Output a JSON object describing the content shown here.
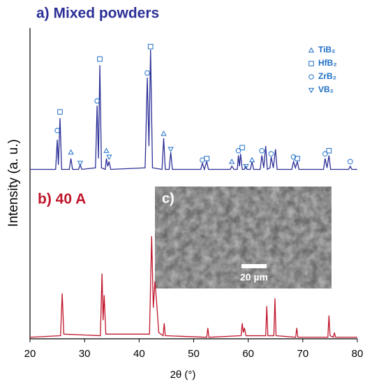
{
  "chart_data": {
    "type": "line",
    "x_label": "2θ (°)",
    "y_label": "Intensity (a. u.)",
    "annotations": [
      "a) Mixed powders",
      "b) 40 A",
      "c)",
      "20 µm"
    ],
    "xlim": [
      20,
      80
    ],
    "xticks": [
      20,
      30,
      40,
      50,
      60,
      70,
      80
    ],
    "ylim": [
      0,
      100
    ],
    "series": [
      {
        "color": "#2b2f96",
        "x": [
          20,
          24.7,
          25.0,
          25.2,
          25.5,
          25.8,
          27.2,
          27.5,
          27.8,
          28.9,
          29.2,
          29.5,
          32.0,
          32.3,
          32.55,
          32.8,
          33.1,
          33.8,
          34.0,
          34.25,
          34.5,
          34.8,
          41.1,
          41.5,
          41.8,
          42.1,
          42.45,
          44.2,
          44.5,
          44.8,
          45.5,
          45.8,
          46.1,
          51.3,
          51.6,
          51.95,
          52.4,
          52.7,
          56.7,
          57.0,
          57.4,
          58.0,
          58.2,
          58.4,
          58.6,
          58.9,
          59.3,
          59.5,
          59.8,
          60.4,
          60.7,
          61.0,
          62.2,
          62.5,
          62.85,
          63.2,
          63.5,
          64.0,
          64.2,
          64.6,
          65.0,
          65.3,
          68.0,
          68.3,
          68.65,
          69.0,
          69.3,
          73.8,
          74.1,
          74.45,
          74.8,
          75.1,
          78.4,
          78.7,
          79.0,
          80
        ],
        "values": [
          54.5,
          54.5,
          64,
          56,
          71,
          54.5,
          54.5,
          58,
          54.5,
          54.5,
          56,
          54.5,
          55,
          75,
          58,
          88,
          55,
          54.5,
          58,
          55.5,
          57,
          54.5,
          55,
          84,
          62,
          93,
          55,
          54.5,
          64.5,
          54.5,
          54.5,
          60,
          54.5,
          54.5,
          56.5,
          54.5,
          57,
          54.5,
          54.5,
          55.5,
          54.5,
          54.5,
          59,
          55.5,
          59.5,
          54.5,
          54.5,
          55.5,
          54.5,
          54.5,
          57,
          54.5,
          54.5,
          59,
          55,
          62,
          54.5,
          55,
          58.5,
          55,
          61,
          54.5,
          54.5,
          57,
          55,
          57,
          54.5,
          54.5,
          58,
          55,
          59,
          54.5,
          54.5,
          55.5,
          54.5,
          54.5
        ]
      },
      {
        "color": "#c0162c",
        "x": [
          20,
          25.6,
          25.9,
          26.2,
          32.9,
          33.2,
          33.4,
          33.6,
          33.9,
          41.9,
          42.3,
          42.6,
          42.9,
          43.2,
          43.6,
          44.4,
          44.6,
          44.8,
          52.4,
          52.6,
          52.8,
          58.7,
          58.9,
          59.1,
          59.3,
          59.6,
          63.2,
          63.4,
          63.6,
          64.7,
          64.9,
          65.1,
          68.7,
          68.9,
          69.1,
          74.6,
          74.8,
          75.0,
          75.6,
          75.8,
          76.0,
          80
        ],
        "values": [
          0.5,
          1,
          14.6,
          1.5,
          1,
          21,
          6,
          14,
          1.5,
          1.5,
          33,
          10,
          18.5,
          12,
          2,
          1,
          5,
          1,
          0.5,
          3.5,
          0.5,
          1,
          5,
          2,
          3.5,
          1,
          1,
          10.5,
          1,
          1,
          13,
          1,
          0.5,
          3.5,
          0.5,
          0.5,
          7.5,
          1,
          0.5,
          2,
          0.5,
          0.5
        ]
      }
    ],
    "phases": [
      {
        "name": "TiB₂",
        "marker": "triangle-up",
        "color": "#1f6fc6",
        "positions": [
          [
            27.5,
            60
          ],
          [
            34.0,
            60.5
          ],
          [
            44.5,
            66
          ],
          [
            57.0,
            57
          ],
          [
            60.7,
            57.5
          ]
        ]
      },
      {
        "name": "HfB₂",
        "marker": "square",
        "color": "#1f6fc6",
        "positions": [
          [
            25.5,
            73
          ],
          [
            32.8,
            90
          ],
          [
            42.1,
            94
          ],
          [
            52.4,
            58
          ],
          [
            58.9,
            61.5
          ],
          [
            69.0,
            58
          ],
          [
            74.8,
            60.5
          ]
        ]
      },
      {
        "name": "ZrB₂",
        "marker": "circle",
        "color": "#1f6fc6",
        "positions": [
          [
            25.0,
            67
          ],
          [
            32.3,
            76.5
          ],
          [
            41.5,
            85.5
          ],
          [
            51.6,
            57.5
          ],
          [
            58.2,
            60.5
          ],
          [
            62.5,
            60.5
          ],
          [
            64.2,
            59.5
          ],
          [
            68.3,
            58.5
          ],
          [
            74.1,
            59.5
          ],
          [
            78.7,
            57
          ]
        ]
      },
      {
        "name": "VB₂",
        "marker": "triangle-down",
        "color": "#1f6fc6",
        "positions": [
          [
            29.2,
            56.5
          ],
          [
            34.5,
            58.5
          ],
          [
            45.8,
            61
          ],
          [
            59.6,
            55.5
          ]
        ]
      }
    ]
  }
}
